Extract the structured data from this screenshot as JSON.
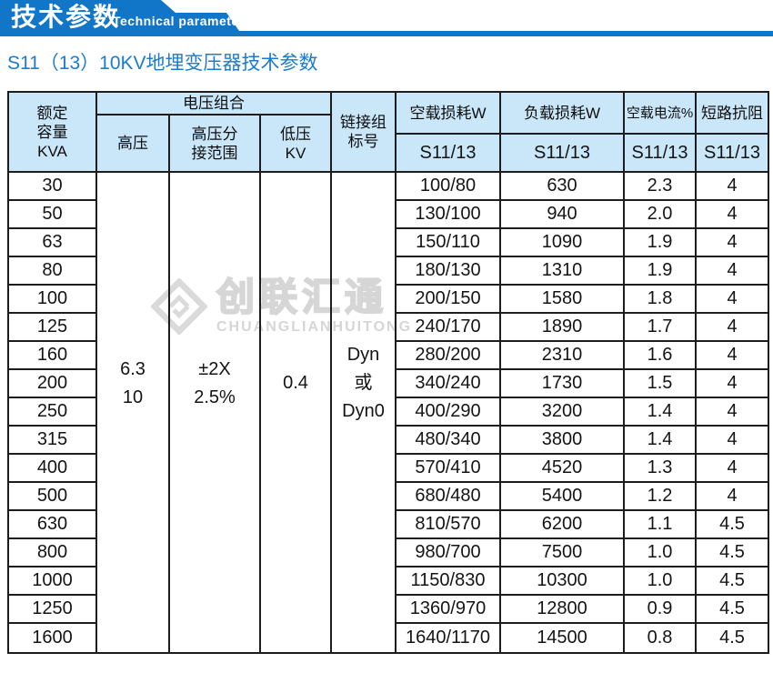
{
  "banner": {
    "title_cn": "技术参数",
    "title_en": "Technical parameter"
  },
  "page_title": "S11（13）10KV地埋变压器技术参数",
  "watermark": {
    "name_cn": "创联汇通",
    "name_en": "CHUANGLIANHUITONG"
  },
  "colors": {
    "banner_blue": "#1276c8",
    "title_blue": "#1a7cd0",
    "header_bg": "#c9e7f9",
    "border": "#1d1d1d",
    "watermark_gray": "#d6d6d6"
  },
  "table": {
    "headers": {
      "capacity": "额定\n容量\nKVA",
      "voltage_group": "电压组合",
      "hv": "高压",
      "hv_tap": "高压分\n接范围",
      "lv": "低压\nKV",
      "vector": "链接组\n标号",
      "no_load_loss": "空载损耗W",
      "load_loss": "负载损耗W",
      "no_load_current": "空载电流%",
      "impedance": "短路抗阻"
    },
    "model_label": "S11/13",
    "merged": {
      "hv": "6.3\n10",
      "hv_tap": "±2X\n2.5%",
      "lv": "0.4",
      "vector": "Dyn\n或\nDyn0"
    },
    "rows": [
      {
        "kva": "30",
        "no_load": "100/80",
        "load": "630",
        "current": "2.3",
        "impedance": "4"
      },
      {
        "kva": "50",
        "no_load": "130/100",
        "load": "940",
        "current": "2.0",
        "impedance": "4"
      },
      {
        "kva": "63",
        "no_load": "150/110",
        "load": "1090",
        "current": "1.9",
        "impedance": "4"
      },
      {
        "kva": "80",
        "no_load": "180/130",
        "load": "1310",
        "current": "1.9",
        "impedance": "4"
      },
      {
        "kva": "100",
        "no_load": "200/150",
        "load": "1580",
        "current": "1.8",
        "impedance": "4"
      },
      {
        "kva": "125",
        "no_load": "240/170",
        "load": "1890",
        "current": "1.7",
        "impedance": "4"
      },
      {
        "kva": "160",
        "no_load": "280/200",
        "load": "2310",
        "current": "1.6",
        "impedance": "4"
      },
      {
        "kva": "200",
        "no_load": "340/240",
        "load": "1730",
        "current": "1.5",
        "impedance": "4"
      },
      {
        "kva": "250",
        "no_load": "400/290",
        "load": "3200",
        "current": "1.4",
        "impedance": "4"
      },
      {
        "kva": "315",
        "no_load": "480/340",
        "load": "3800",
        "current": "1.4",
        "impedance": "4"
      },
      {
        "kva": "400",
        "no_load": "570/410",
        "load": "4520",
        "current": "1.3",
        "impedance": "4"
      },
      {
        "kva": "500",
        "no_load": "680/480",
        "load": "5400",
        "current": "1.2",
        "impedance": "4"
      },
      {
        "kva": "630",
        "no_load": "810/570",
        "load": "6200",
        "current": "1.1",
        "impedance": "4.5"
      },
      {
        "kva": "800",
        "no_load": "980/700",
        "load": "7500",
        "current": "1.0",
        "impedance": "4.5"
      },
      {
        "kva": "1000",
        "no_load": "1150/830",
        "load": "10300",
        "current": "1.0",
        "impedance": "4.5"
      },
      {
        "kva": "1250",
        "no_load": "1360/970",
        "load": "12800",
        "current": "0.9",
        "impedance": "4.5"
      },
      {
        "kva": "1600",
        "no_load": "1640/1170",
        "load": "14500",
        "current": "0.8",
        "impedance": "4.5"
      }
    ]
  }
}
